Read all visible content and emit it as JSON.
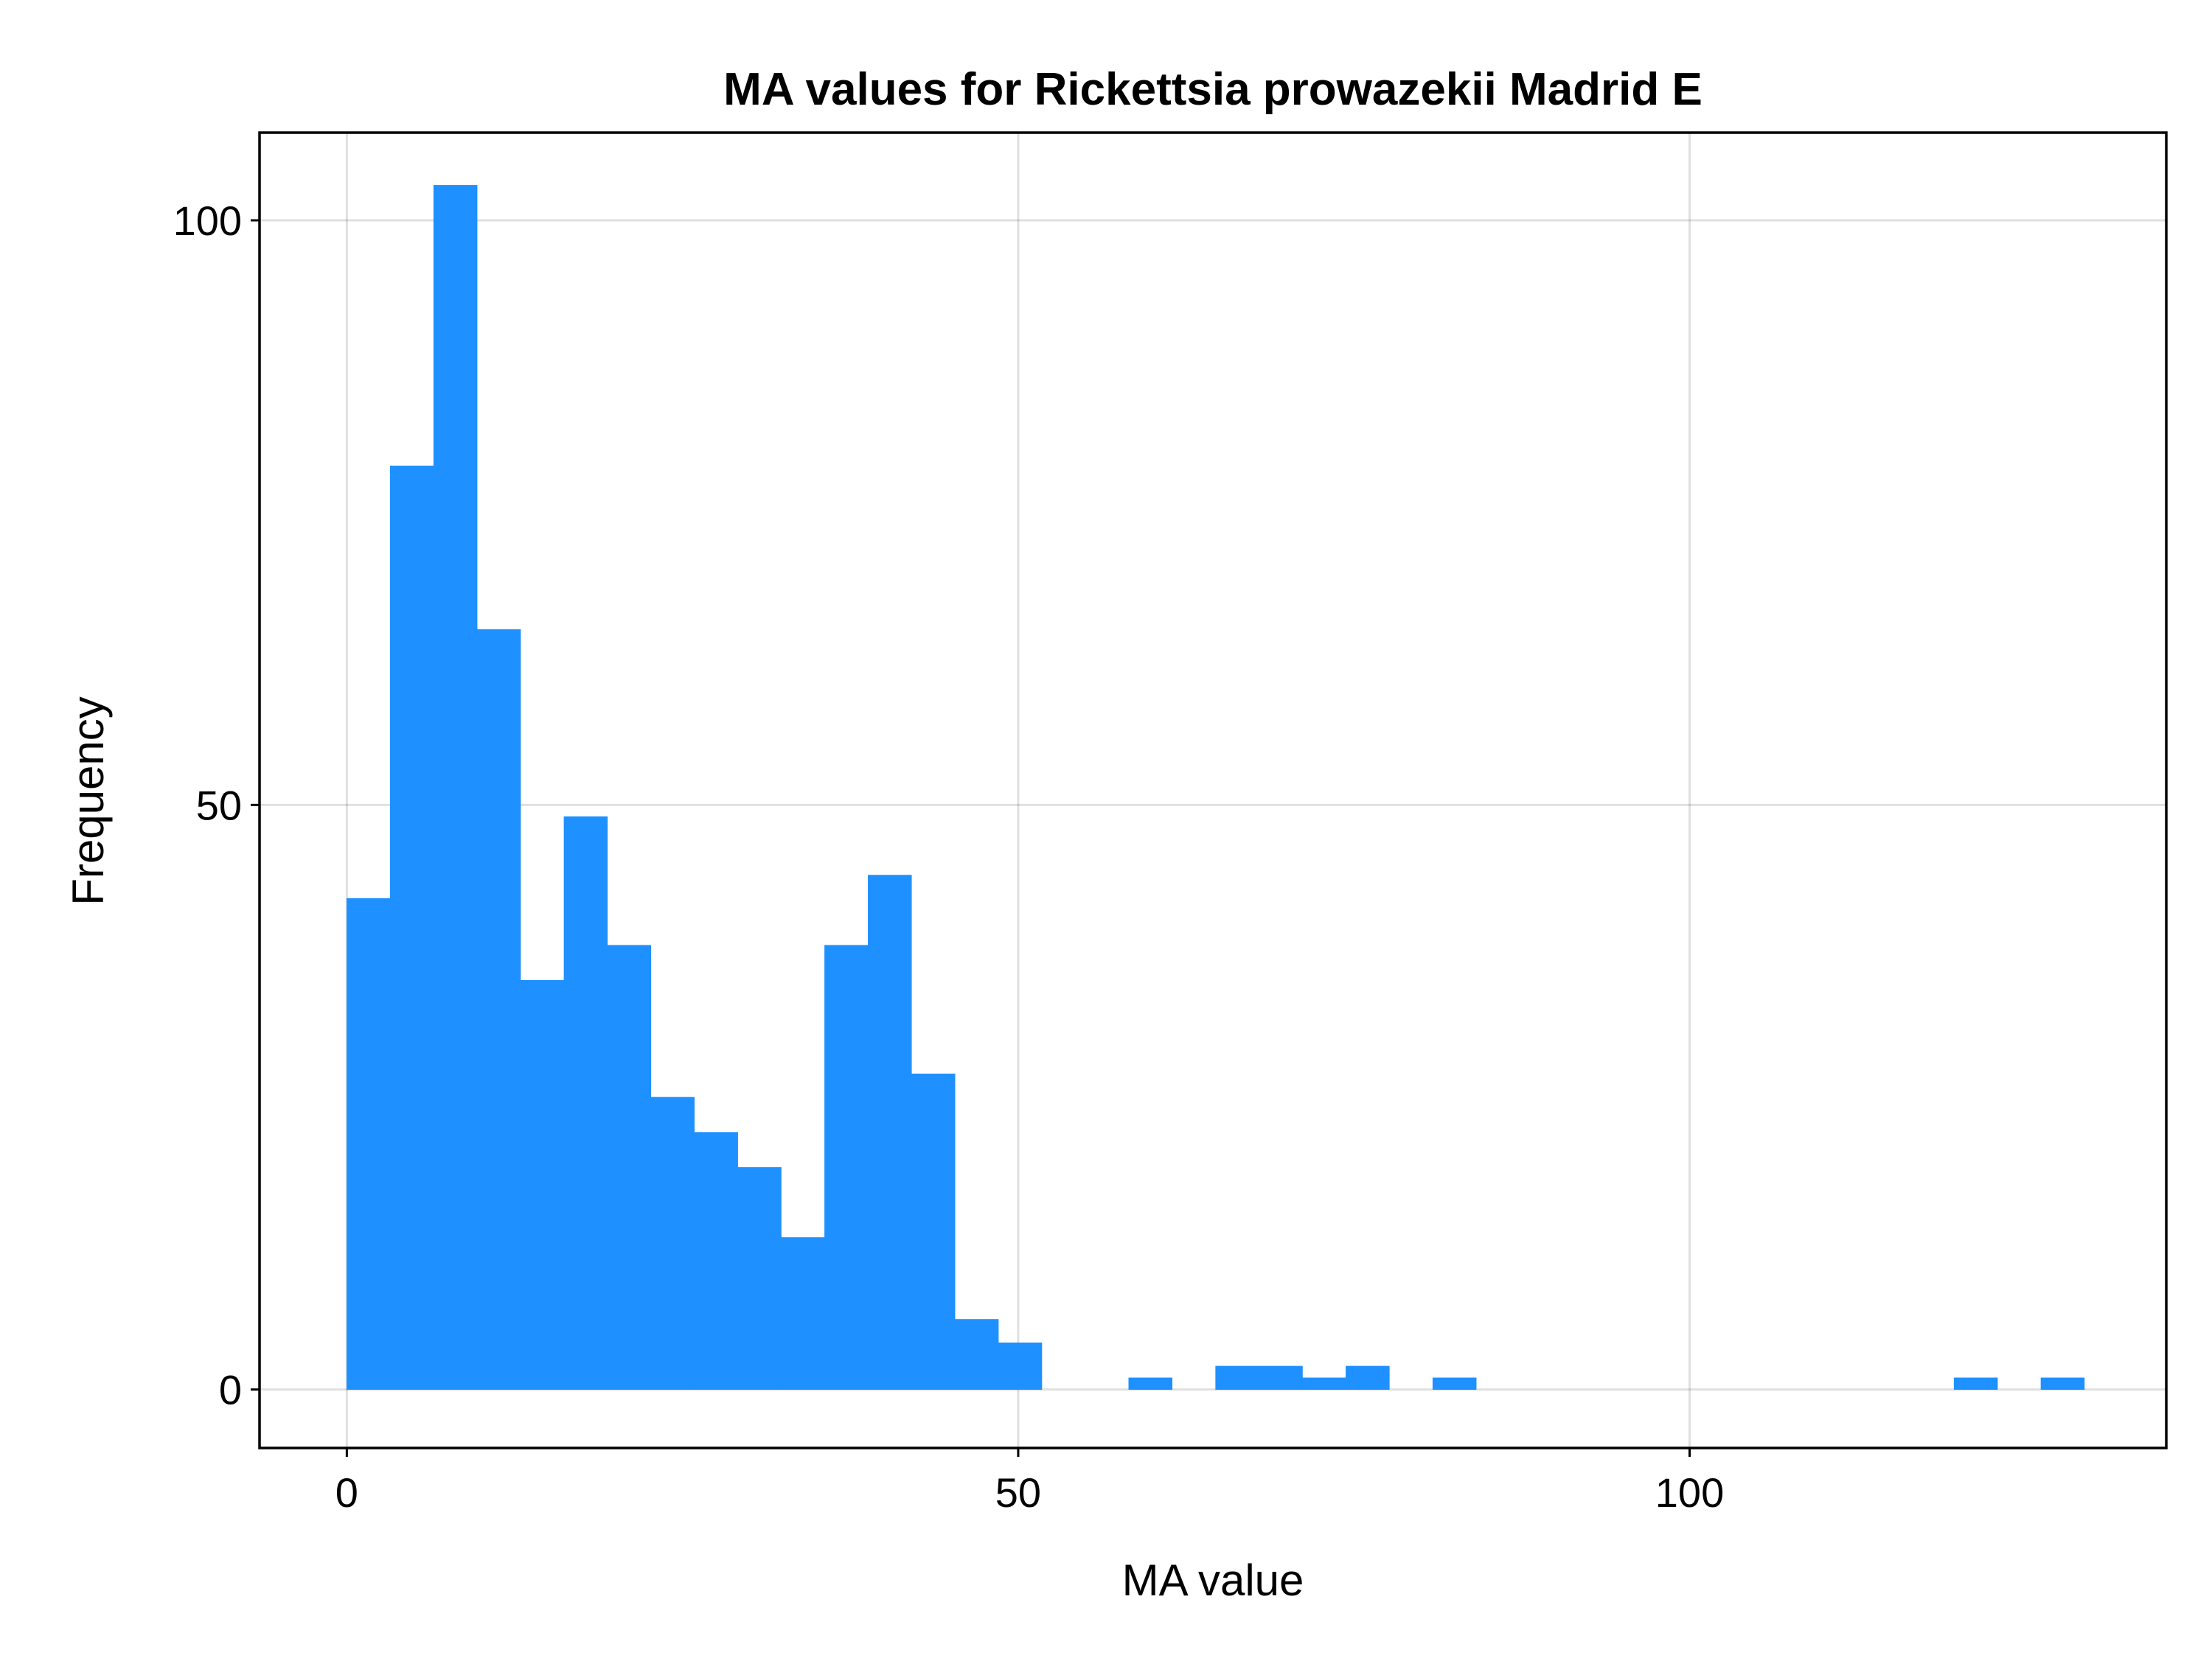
{
  "chart_data": {
    "type": "bar",
    "title": "MA values for Rickettsia prowazekii Madrid E",
    "xlabel": "MA value",
    "ylabel": "Frequency",
    "xlim": [
      -6.5,
      135.5
    ],
    "ylim": [
      -5,
      107.5
    ],
    "xticks": [
      0,
      50,
      100
    ],
    "xtick_labels": [
      "0",
      "50",
      "100"
    ],
    "yticks": [
      0,
      50,
      100
    ],
    "ytick_labels": [
      "0",
      "50",
      "100"
    ],
    "grid": true,
    "bar_color": "#1F90FF",
    "bin_width": 3.235,
    "bins": [
      {
        "start": 0.0,
        "value": 42
      },
      {
        "start": 3.235,
        "value": 79
      },
      {
        "start": 6.47,
        "value": 103
      },
      {
        "start": 9.705,
        "value": 65
      },
      {
        "start": 12.94,
        "value": 35
      },
      {
        "start": 16.175,
        "value": 49
      },
      {
        "start": 19.41,
        "value": 38
      },
      {
        "start": 22.645,
        "value": 25
      },
      {
        "start": 25.88,
        "value": 22
      },
      {
        "start": 29.115,
        "value": 19
      },
      {
        "start": 32.35,
        "value": 13
      },
      {
        "start": 35.585,
        "value": 38
      },
      {
        "start": 38.82,
        "value": 44
      },
      {
        "start": 42.055,
        "value": 27
      },
      {
        "start": 45.29,
        "value": 6
      },
      {
        "start": 48.525,
        "value": 4
      },
      {
        "start": 51.76,
        "value": 0
      },
      {
        "start": 54.995,
        "value": 0
      },
      {
        "start": 58.23,
        "value": 1
      },
      {
        "start": 61.465,
        "value": 0
      },
      {
        "start": 64.7,
        "value": 2
      },
      {
        "start": 67.935,
        "value": 2
      },
      {
        "start": 71.17,
        "value": 1
      },
      {
        "start": 74.405,
        "value": 2
      },
      {
        "start": 77.64,
        "value": 0
      },
      {
        "start": 80.875,
        "value": 1
      },
      {
        "start": 119.695,
        "value": 1
      },
      {
        "start": 126.165,
        "value": 1
      }
    ]
  }
}
